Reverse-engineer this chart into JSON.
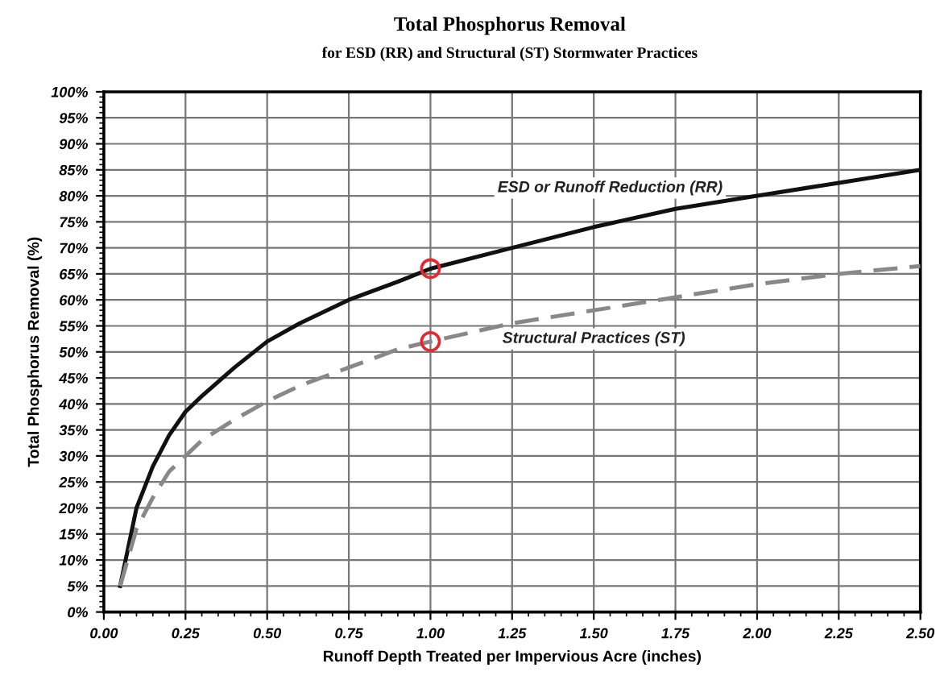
{
  "chart_data": {
    "type": "line",
    "title": "Total Phosphorus Removal",
    "subtitle": "for ESD (RR) and Structural (ST) Stormwater Practices",
    "xlabel": "Runoff Depth Treated per Impervious Acre (inches)",
    "ylabel": "Total Phosphorus Removal (%)",
    "series": [
      {
        "name": "ESD or Runoff Reduction (RR)",
        "color": "#111111",
        "line_style": "solid",
        "x": [
          0.05,
          0.1,
          0.15,
          0.2,
          0.25,
          0.3,
          0.4,
          0.5,
          0.6,
          0.75,
          0.9,
          1.0,
          1.25,
          1.5,
          1.75,
          2.0,
          2.25,
          2.5
        ],
        "values": [
          5,
          20,
          28,
          34,
          38.5,
          41.5,
          47,
          52,
          55.5,
          60,
          63.5,
          66,
          70,
          74,
          77.5,
          80,
          82.5,
          85
        ]
      },
      {
        "name": "Structural Practices (ST)",
        "color": "#888888",
        "line_style": "dashed",
        "x": [
          0.05,
          0.1,
          0.15,
          0.2,
          0.25,
          0.3,
          0.4,
          0.5,
          0.6,
          0.75,
          0.9,
          1.0,
          1.25,
          1.5,
          1.75,
          2.0,
          2.25,
          2.5
        ],
        "values": [
          5,
          16,
          22,
          27,
          30,
          33,
          37,
          40.5,
          43.5,
          47,
          50.5,
          52,
          55.5,
          58,
          60.5,
          63,
          65,
          66.5
        ]
      },
      {
        "type": "scatter",
        "color": "#e8262b",
        "marker": "circle",
        "x": [
          1.0,
          1.0
        ],
        "values": [
          66,
          52
        ]
      }
    ],
    "xlim": [
      0,
      2.5
    ],
    "xticks": [
      {
        "value": 0,
        "label": "0.00"
      },
      0.25,
      {
        "value": 0.5,
        "label": "0.50"
      },
      0.75,
      {
        "value": 1,
        "label": "1.00"
      },
      1.25,
      {
        "value": 1.5,
        "label": "1.50"
      },
      1.75,
      {
        "value": 2,
        "label": "2.00"
      },
      2.25,
      {
        "value": 2.5,
        "label": "2.50"
      }
    ],
    "ylim": [
      0,
      100
    ],
    "yticks": [
      {
        "value": 0,
        "label": "0%"
      },
      {
        "value": 5,
        "label": "5%"
      },
      {
        "value": 10,
        "label": "10%"
      },
      {
        "value": 15,
        "label": "15%"
      },
      {
        "value": 20,
        "label": "20%"
      },
      {
        "value": 25,
        "label": "25%"
      },
      {
        "value": 30,
        "label": "30%"
      },
      {
        "value": 35,
        "label": "35%"
      },
      {
        "value": 40,
        "label": "40%"
      },
      {
        "value": 45,
        "label": "45%"
      },
      {
        "value": 50,
        "label": "50%"
      },
      {
        "value": 55,
        "label": "55%"
      },
      {
        "value": 60,
        "label": "60%"
      },
      {
        "value": 65,
        "label": "65%"
      },
      {
        "value": 70,
        "label": "70%"
      },
      {
        "value": 75,
        "label": "75%"
      },
      {
        "value": 80,
        "label": "80%"
      },
      {
        "value": 85,
        "label": "85%"
      },
      {
        "value": 90,
        "label": "90%"
      },
      {
        "value": 95,
        "label": "95%"
      },
      {
        "value": 100,
        "label": "100%"
      }
    ],
    "grid": true,
    "legend": false
  }
}
